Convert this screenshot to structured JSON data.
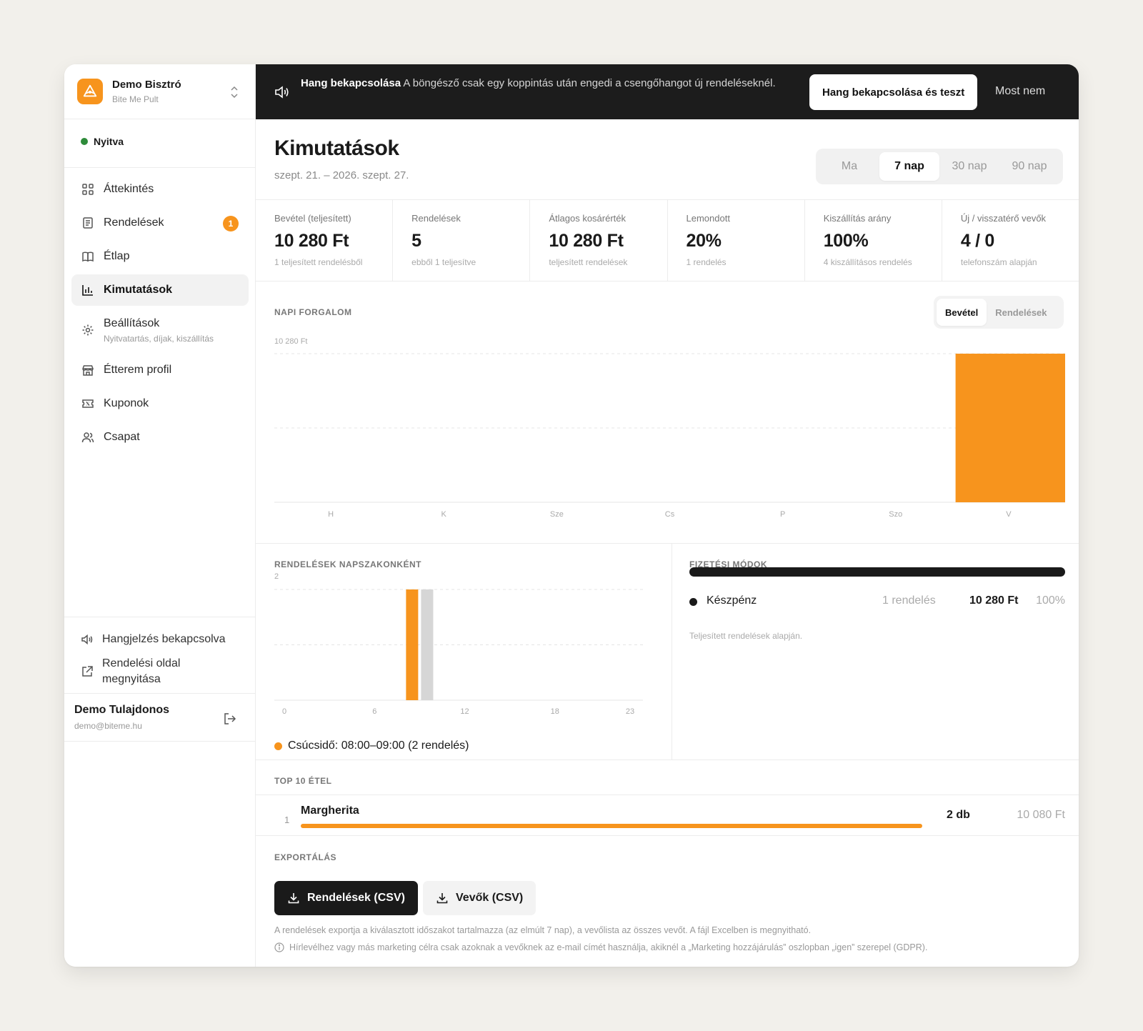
{
  "brand": {
    "name": "Demo Bisztró",
    "subtitle": "Bite Me Pult"
  },
  "status": {
    "label": "Nyitva",
    "color": "#2e8b3a"
  },
  "sidebar": {
    "items": [
      {
        "label": "Áttekintés",
        "icon": "dashboard-grid-icon"
      },
      {
        "label": "Rendelések",
        "icon": "receipt-icon",
        "badge": "1"
      },
      {
        "label": "Étlap",
        "icon": "book-open-icon"
      },
      {
        "label": "Kimutatások",
        "icon": "bar-chart-icon",
        "active": true
      },
      {
        "label": "Beállítások",
        "sublabel": "Nyitvatartás, díjak, kiszállítás",
        "icon": "gear-icon"
      },
      {
        "label": "Étterem profil",
        "icon": "store-icon"
      },
      {
        "label": "Kuponok",
        "icon": "ticket-icon"
      },
      {
        "label": "Csapat",
        "icon": "users-icon"
      }
    ],
    "sound_label": "Hangjelzés bekapcsolva",
    "open_page_label": "Rendelési oldal megnyitása",
    "user": {
      "name": "Demo Tulajdonos",
      "email": "demo@biteme.hu"
    }
  },
  "banner": {
    "title": "Hang bekapcsolása",
    "text": "A böngésző csak egy koppintás után engedi a csengőhangot új rendeléseknél.",
    "button": "Hang bekapcsolása és teszt",
    "dismiss": "Most nem"
  },
  "page": {
    "title": "Kimutatások",
    "subtitle": "szept. 21. – 2026. szept. 27."
  },
  "range": {
    "options": [
      "Ma",
      "7 nap",
      "30 nap",
      "90 nap"
    ],
    "selected": "7 nap"
  },
  "stats": [
    {
      "label": "Bevétel (teljesített)",
      "value": "10 280 Ft",
      "sub": "1 teljesített rendelésből"
    },
    {
      "label": "Rendelések",
      "value": "5",
      "sub": "ebből 1 teljesítve"
    },
    {
      "label": "Átlagos kosárérték",
      "value": "10 280 Ft",
      "sub": "teljesített rendelések"
    },
    {
      "label": "Lemondott",
      "value": "20%",
      "sub": "1 rendelés"
    },
    {
      "label": "Kiszállítás arány",
      "value": "100%",
      "sub": "4 kiszállításos rendelés"
    },
    {
      "label": "Új / visszatérő vevők",
      "value": "4 / 0",
      "sub": "telefonszám alapján"
    }
  ],
  "daily": {
    "label": "NAPI FORGALOM",
    "toggle": [
      "Bevétel",
      "Rendelések"
    ],
    "toggle_selected": "Bevétel"
  },
  "hourly": {
    "label": "RENDELÉSEK NAPSZAKONKÉNT",
    "peak": "Csúcsidő: 08:00–09:00 (2 rendelés)"
  },
  "payments": {
    "label": "FIZETÉSI MÓDOK",
    "items": [
      {
        "name": "Készpénz",
        "count": "1 rendelés",
        "amount": "10 280 Ft",
        "pct": "100%"
      }
    ],
    "note": "Teljesített rendelések alapján."
  },
  "top": {
    "label": "TOP 10 ÉTEL",
    "items": [
      {
        "rank": "1",
        "name": "Margherita",
        "qty": "2 db",
        "amount": "10 080 Ft",
        "share": 1.0
      }
    ]
  },
  "export": {
    "label": "EXPORTÁLÁS",
    "orders_button": "Rendelések (CSV)",
    "customers_button": "Vevők (CSV)",
    "note": "A rendelések exportja a kiválasztott időszakot tartalmazza (az elmúlt 7 nap), a vevőlista az összes vevőt. A fájl Excelben is megnyitható.",
    "gdpr": "Hírlevélhez vagy más marketing célra csak azoknak a vevőknek az e-mail címét használja, akiknél a „Marketing hozzájárulás” oszlopban „igen” szerepel (GDPR)."
  },
  "colors": {
    "accent": "#f7941d",
    "dark": "#1a1a1a",
    "muted_bar": "#d6d6d6"
  },
  "chart_data": [
    {
      "type": "bar",
      "title": "NAPI FORGALOM",
      "categories": [
        "H",
        "K",
        "Sze",
        "Cs",
        "P",
        "Szo",
        "V"
      ],
      "values": [
        0,
        0,
        0,
        0,
        0,
        0,
        10280
      ],
      "ylim": [
        0,
        10280
      ],
      "y_tick_labels": [
        "10 280 Ft"
      ],
      "grid": true
    },
    {
      "type": "bar",
      "title": "RENDELÉSEK NAPSZAKONKÉNT",
      "x": [
        0,
        1,
        2,
        3,
        4,
        5,
        6,
        7,
        8,
        9,
        10,
        11,
        12,
        13,
        14,
        15,
        16,
        17,
        18,
        19,
        20,
        21,
        22,
        23
      ],
      "values": [
        0,
        0,
        0,
        0,
        0,
        0,
        0,
        0,
        2,
        2,
        0,
        0,
        0,
        0,
        0,
        0,
        0,
        0,
        0,
        0,
        0,
        0,
        0,
        0
      ],
      "highlight_hour": 8,
      "ylim": [
        0,
        2
      ],
      "y_tick_labels": [
        "2"
      ],
      "x_tick_labels": [
        "0",
        "6",
        "12",
        "18",
        "23"
      ],
      "grid": true
    }
  ]
}
